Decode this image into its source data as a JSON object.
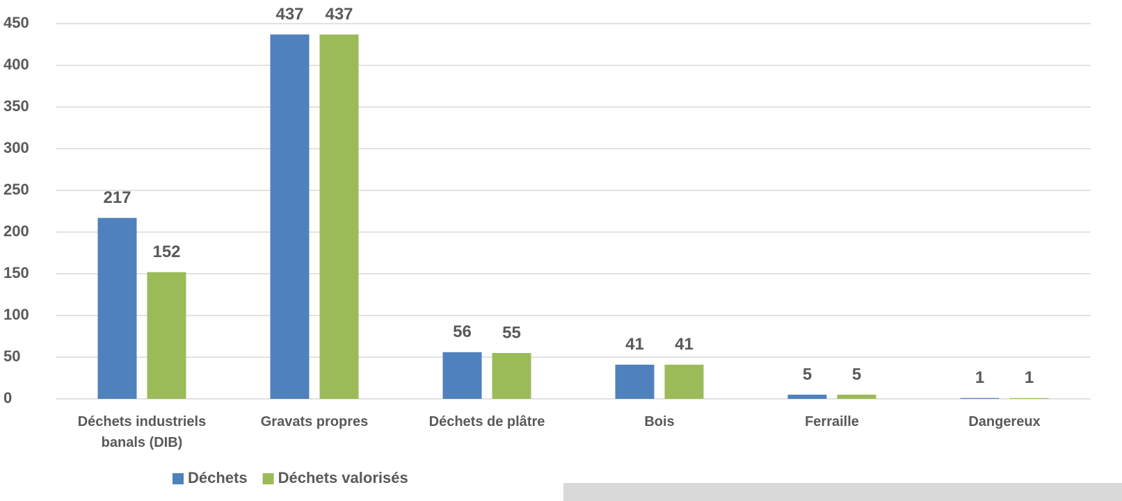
{
  "chart_data": {
    "type": "bar",
    "categories": [
      "Déchets industriels banals (DIB)",
      "Gravats propres",
      "Déchets de plâtre",
      "Bois",
      "Ferraille",
      "Dangereux"
    ],
    "series": [
      {
        "name": "Déchets",
        "color": "#4f81bd",
        "values": [
          217,
          437,
          56,
          41,
          5,
          1
        ]
      },
      {
        "name": "Déchets valorisés",
        "color": "#9bbb59",
        "values": [
          152,
          437,
          55,
          41,
          5,
          1
        ]
      }
    ],
    "ylim": [
      0,
      450
    ],
    "yticks": [
      0,
      50,
      100,
      150,
      200,
      250,
      300,
      350,
      400,
      450
    ],
    "grid": true,
    "legend": "bottom"
  }
}
